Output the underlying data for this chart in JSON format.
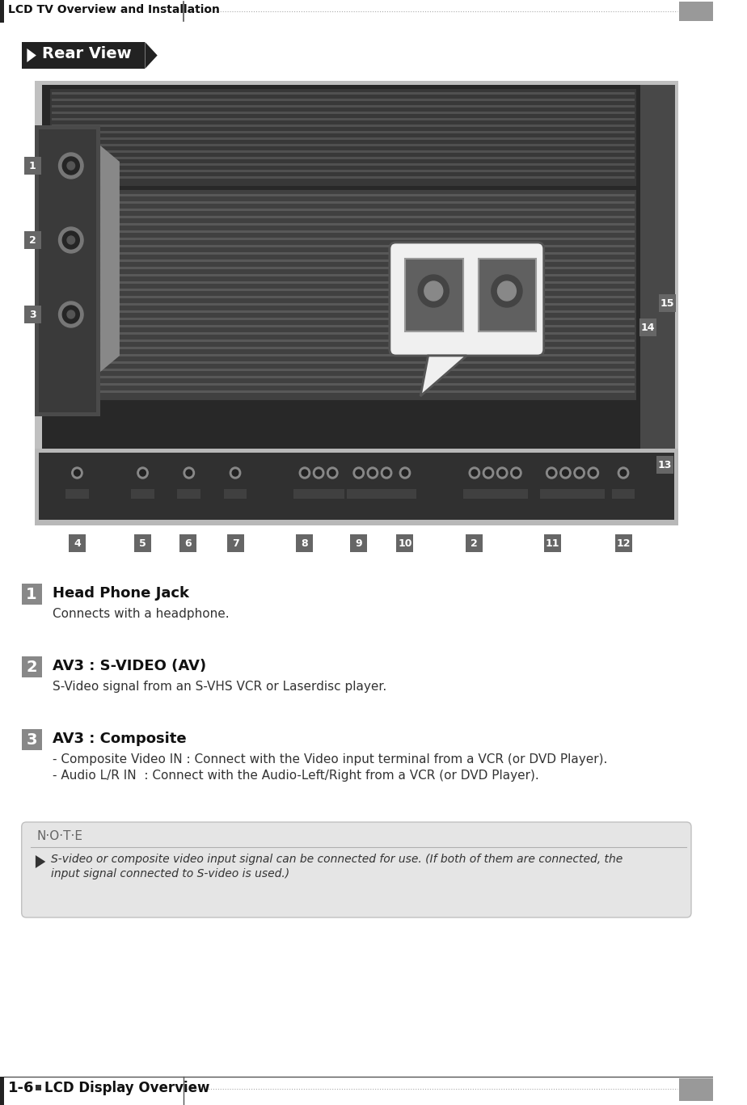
{
  "page_title": "LCD TV Overview and Installation",
  "footer_text": "1-6",
  "footer_sub": "LCD Display Overview",
  "section_title": "Rear View",
  "items": [
    {
      "num": "1",
      "title": "Head Phone Jack",
      "desc": "Connects with a headphone."
    },
    {
      "num": "2",
      "title": "AV3 : S-VIDEO (AV)",
      "desc": "S-Video signal from an S-VHS VCR or Laserdisc player."
    },
    {
      "num": "3",
      "title": "AV3 : Composite",
      "desc_lines": [
        "- Composite Video IN : Connect with the Video input terminal from a VCR (or DVD Player).",
        "- Audio L/R IN  : Connect with the Audio-Left/Right from a VCR (or DVD Player)."
      ]
    }
  ],
  "note_title": "N·O·T·E",
  "note_text": "S-video or composite video input signal can be connected for use. (If both of them are connected, the\ninput signal connected to S-video is used.)",
  "bg_color": "#ffffff",
  "note_bg": "#e5e5e5",
  "body_label_numbers": [
    "4",
    "5",
    "6",
    "7",
    "8",
    "9",
    "10",
    "2",
    "11",
    "12"
  ],
  "side_label_numbers": [
    "1",
    "2",
    "3"
  ],
  "corner_label_numbers": [
    "13",
    "14",
    "15"
  ]
}
